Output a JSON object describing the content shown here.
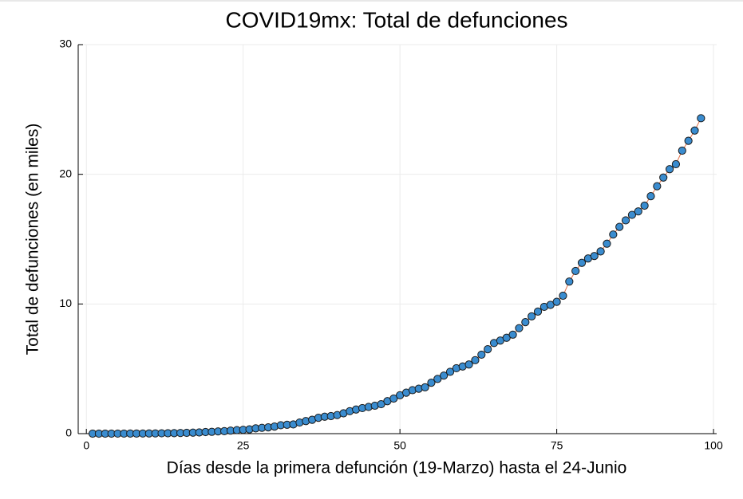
{
  "chart_data": {
    "type": "scatter",
    "title": "COVID19mx: Total de defunciones",
    "x_label": "Días desde la primera defunción (19-Marzo) hasta el 24-Junio",
    "y_label": "Total de defunciones (en miles)",
    "x": [
      1,
      2,
      3,
      4,
      5,
      6,
      7,
      8,
      9,
      10,
      11,
      12,
      13,
      14,
      15,
      16,
      17,
      18,
      19,
      20,
      21,
      22,
      23,
      24,
      25,
      26,
      27,
      28,
      29,
      30,
      31,
      32,
      33,
      34,
      35,
      36,
      37,
      38,
      39,
      40,
      41,
      42,
      43,
      44,
      45,
      46,
      47,
      48,
      49,
      50,
      51,
      52,
      53,
      54,
      55,
      56,
      57,
      58,
      59,
      60,
      61,
      62,
      63,
      64,
      65,
      66,
      67,
      68,
      69,
      70,
      71,
      72,
      73,
      74,
      75,
      76,
      77,
      78,
      79,
      80,
      81,
      82,
      83,
      84,
      85,
      86,
      87,
      88,
      89,
      90,
      91,
      92,
      93,
      94,
      95,
      96,
      97,
      98
    ],
    "series": [
      {
        "color": "#3a8ccf",
        "line_color": "#e26f46",
        "values": [
          0.001,
          0.002,
          0.002,
          0.002,
          0.004,
          0.005,
          0.006,
          0.008,
          0.012,
          0.016,
          0.02,
          0.028,
          0.029,
          0.037,
          0.05,
          0.06,
          0.079,
          0.094,
          0.125,
          0.141,
          0.174,
          0.194,
          0.233,
          0.273,
          0.296,
          0.332,
          0.406,
          0.449,
          0.486,
          0.546,
          0.65,
          0.686,
          0.712,
          0.857,
          0.97,
          1.069,
          1.221,
          1.305,
          1.351,
          1.434,
          1.569,
          1.732,
          1.859,
          1.972,
          2.061,
          2.154,
          2.271,
          2.507,
          2.704,
          2.961,
          3.16,
          3.353,
          3.465,
          3.573,
          3.926,
          4.22,
          4.477,
          4.767,
          5.045,
          5.177,
          5.332,
          5.666,
          6.09,
          6.51,
          6.989,
          7.179,
          7.394,
          7.633,
          8.134,
          8.597,
          9.044,
          9.415,
          9.779,
          9.93,
          10.167,
          10.637,
          11.729,
          12.545,
          13.17,
          13.511,
          13.699,
          14.053,
          14.649,
          15.357,
          15.944,
          16.448,
          16.872,
          17.141,
          17.58,
          18.31,
          19.08,
          19.747,
          20.394,
          20.781,
          21.825,
          22.584,
          23.377,
          24.324
        ]
      }
    ],
    "xlim": [
      -1.3,
      100.5
    ],
    "ylim": [
      0,
      30
    ],
    "xticks": [
      0,
      25,
      50,
      75,
      100
    ],
    "yticks": [
      0,
      10,
      20,
      30
    ],
    "grid": true
  }
}
